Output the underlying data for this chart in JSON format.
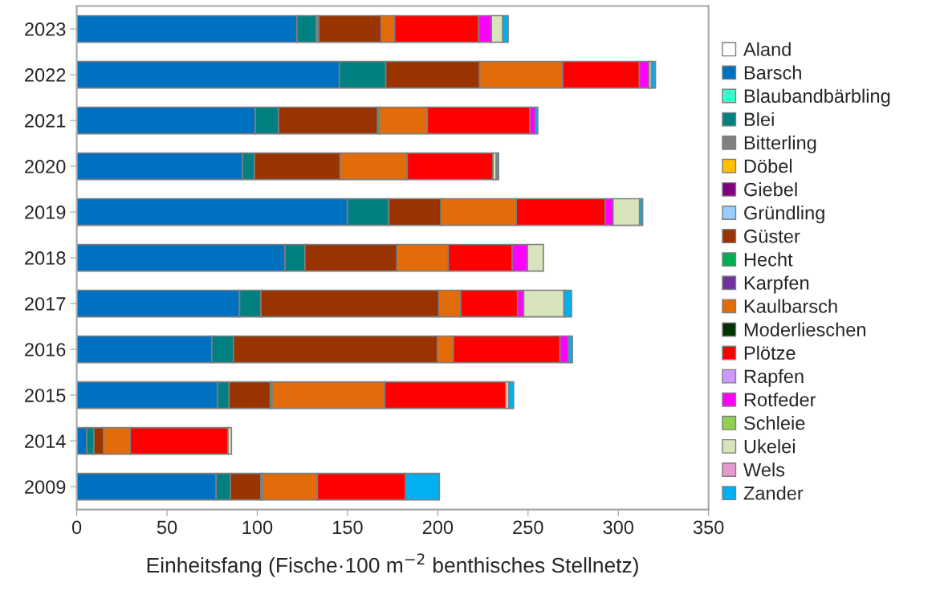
{
  "chart_data": {
    "type": "bar",
    "orientation": "horizontal",
    "stacked": true,
    "xlabel": "Einheitsfang (Fische·100 m$^{−2}$ benthisches Stellnetz)",
    "legend": "right",
    "xlim": [
      0,
      350
    ],
    "xticks": [
      0,
      50,
      100,
      150,
      200,
      250,
      300,
      350
    ],
    "categories": [
      "2023",
      "2022",
      "2021",
      "2020",
      "2019",
      "2018",
      "2017",
      "2016",
      "2015",
      "2014",
      "2009"
    ],
    "series": [
      {
        "name": "Aland",
        "color": "#ffffff",
        "values": [
          null,
          null,
          null,
          null,
          null,
          null,
          null,
          null,
          null,
          null,
          null
        ]
      },
      {
        "name": "Barsch",
        "color": "#0070c0",
        "values": [
          122,
          145.5,
          98.9,
          91.8,
          149.9,
          115.3,
          90.2,
          74.8,
          77.9,
          5.6,
          77.2
        ]
      },
      {
        "name": "Blaubandbärbling",
        "color": "#33ffcc",
        "values": [
          null,
          null,
          null,
          null,
          null,
          null,
          null,
          null,
          null,
          null,
          null
        ]
      },
      {
        "name": "Blei",
        "color": "#008080",
        "values": [
          10.6,
          25.7,
          12.9,
          6.6,
          23,
          11.1,
          11.8,
          12,
          6.5,
          3.9,
          7.9
        ]
      },
      {
        "name": "Bitterling",
        "color": "#808080",
        "values": [
          1.5,
          null,
          null,
          null,
          null,
          null,
          null,
          null,
          null,
          null,
          null
        ]
      },
      {
        "name": "Döbel",
        "color": "#ffc000",
        "values": [
          null,
          null,
          null,
          null,
          null,
          null,
          null,
          null,
          null,
          null,
          null
        ]
      },
      {
        "name": "Giebel",
        "color": "#800080",
        "values": [
          null,
          null,
          null,
          null,
          null,
          null,
          null,
          null,
          null,
          null,
          null
        ]
      },
      {
        "name": "Gründling",
        "color": "#99ccff",
        "values": [
          null,
          null,
          null,
          null,
          null,
          null,
          null,
          null,
          null,
          null,
          null
        ]
      },
      {
        "name": "Güster",
        "color": "#993300",
        "values": [
          34.5,
          52,
          54.9,
          47.5,
          28.9,
          51,
          98.6,
          113.1,
          22.8,
          5.4,
          16.9
        ]
      },
      {
        "name": "Hecht",
        "color": "#00b050",
        "values": [
          null,
          null,
          0.9,
          null,
          null,
          null,
          null,
          null,
          1,
          null,
          0.9
        ]
      },
      {
        "name": "Karpfen",
        "color": "#7030a0",
        "values": [
          null,
          null,
          null,
          null,
          null,
          null,
          null,
          null,
          null,
          null,
          null
        ]
      },
      {
        "name": "Kaulbarsch",
        "color": "#e26b0a",
        "values": [
          7.5,
          46,
          26.6,
          37.2,
          41.7,
          28.4,
          12.1,
          8.7,
          62.4,
          14.7,
          30.4
        ]
      },
      {
        "name": "Moderlieschen",
        "color": "#003300",
        "values": [
          null,
          null,
          null,
          null,
          null,
          null,
          null,
          null,
          null,
          null,
          null
        ]
      },
      {
        "name": "Plötze",
        "color": "#ff0000",
        "values": [
          46.6,
          42.5,
          56.8,
          47.5,
          49.2,
          35.4,
          31.5,
          59.1,
          67,
          54.2,
          48.8
        ]
      },
      {
        "name": "Rapfen",
        "color": "#cc99ff",
        "values": [
          null,
          null,
          null,
          null,
          null,
          null,
          null,
          null,
          null,
          null,
          null
        ]
      },
      {
        "name": "Rotfeder",
        "color": "#ff00ff",
        "values": [
          7,
          5.3,
          3.1,
          null,
          4.4,
          8.5,
          3.4,
          4.6,
          null,
          null,
          null
        ]
      },
      {
        "name": "Schleie",
        "color": "#92d050",
        "values": [
          null,
          null,
          null,
          null,
          null,
          null,
          null,
          null,
          null,
          null,
          null
        ]
      },
      {
        "name": "Ukelei",
        "color": "#d8e4bc",
        "values": [
          6.3,
          1.4,
          null,
          1.8,
          14.7,
          8.8,
          22.3,
          null,
          1.7,
          1.9,
          null
        ]
      },
      {
        "name": "Wels",
        "color": "#e699cc",
        "values": [
          null,
          null,
          null,
          null,
          null,
          null,
          null,
          null,
          null,
          null,
          null
        ]
      },
      {
        "name": "Zander",
        "color": "#00b0f0",
        "values": [
          3,
          2.2,
          1.3,
          1.3,
          1.7,
          null,
          4.2,
          2.3,
          2.7,
          null,
          18.8
        ]
      }
    ]
  }
}
